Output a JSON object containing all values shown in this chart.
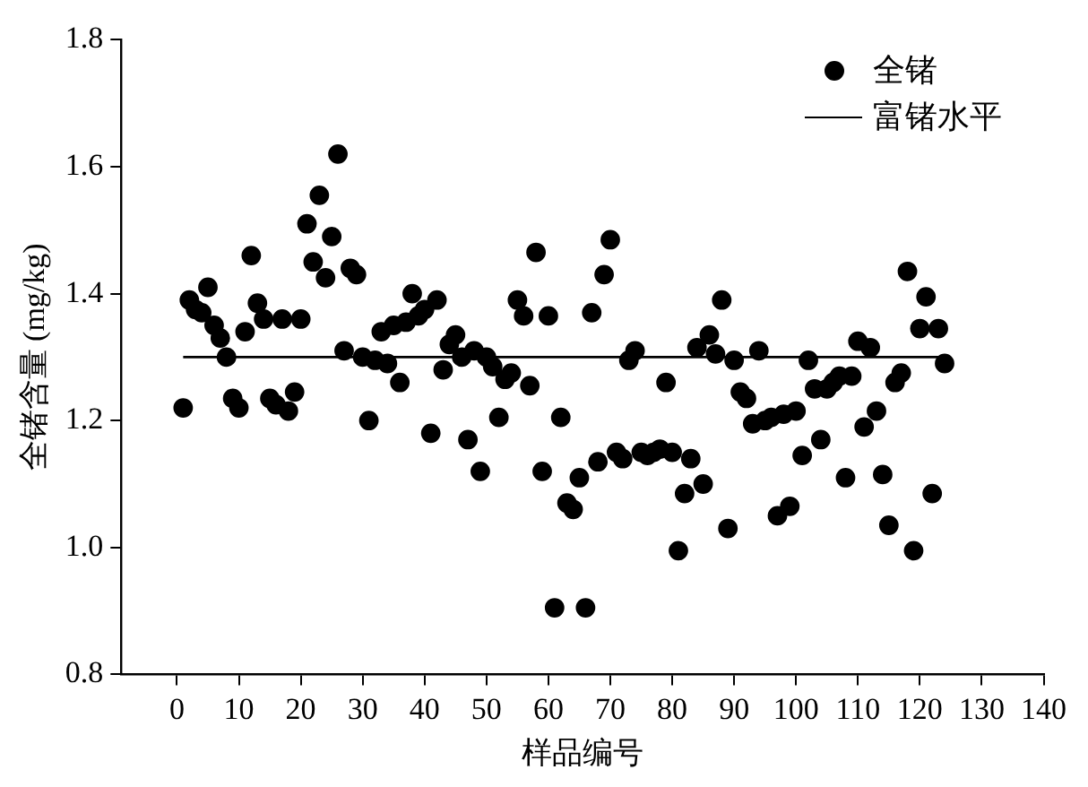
{
  "chart_data": {
    "type": "scatter",
    "xlabel": "样品编号",
    "ylabel": "全锗含量 (mg/kg)",
    "xlim": [
      -9,
      140
    ],
    "xticks": [
      0,
      10,
      20,
      30,
      40,
      50,
      60,
      70,
      80,
      90,
      100,
      110,
      120,
      130,
      140
    ],
    "ylim": [
      0.8,
      1.8
    ],
    "yticks": [
      {
        "value": 0.8,
        "label": "0.8"
      },
      {
        "value": 1.0,
        "label": "1.0"
      },
      {
        "value": 1.2,
        "label": "1.2"
      },
      {
        "value": 1.4,
        "label": "1.4"
      },
      {
        "value": 1.6,
        "label": "1.6"
      },
      {
        "value": 1.8,
        "label": "1.8"
      }
    ],
    "grid": false,
    "legend": "top right",
    "marker": "circle",
    "series": [
      {
        "name": "全锗",
        "type": "scatter",
        "color": "#000000",
        "x": [
          1,
          2,
          3,
          4,
          5,
          6,
          7,
          8,
          9,
          10,
          11,
          12,
          13,
          14,
          15,
          16,
          17,
          18,
          19,
          20,
          21,
          22,
          23,
          24,
          25,
          26,
          27,
          28,
          29,
          30,
          31,
          32,
          33,
          34,
          35,
          36,
          37,
          38,
          39,
          40,
          41,
          42,
          43,
          44,
          45,
          46,
          47,
          48,
          49,
          50,
          51,
          52,
          53,
          54,
          55,
          56,
          57,
          58,
          59,
          60,
          61,
          62,
          63,
          64,
          65,
          66,
          67,
          68,
          69,
          70,
          71,
          72,
          73,
          74,
          75,
          76,
          77,
          78,
          79,
          80,
          81,
          82,
          83,
          84,
          85,
          86,
          87,
          88,
          89,
          90,
          91,
          92,
          93,
          94,
          95,
          96,
          97,
          98,
          99,
          100,
          101,
          102,
          103,
          104,
          105,
          106,
          107,
          108,
          109,
          110,
          111,
          112,
          113,
          114,
          115,
          116,
          117,
          118,
          119,
          120,
          121,
          122,
          123,
          124
        ],
        "values": [
          1.22,
          1.39,
          1.375,
          1.37,
          1.41,
          1.35,
          1.33,
          1.3,
          1.235,
          1.22,
          1.34,
          1.46,
          1.385,
          1.36,
          1.235,
          1.225,
          1.36,
          1.215,
          1.245,
          1.36,
          1.51,
          1.45,
          1.555,
          1.425,
          1.49,
          1.62,
          1.31,
          1.44,
          1.43,
          1.3,
          1.2,
          1.295,
          1.34,
          1.29,
          1.35,
          1.26,
          1.355,
          1.4,
          1.365,
          1.375,
          1.18,
          1.39,
          1.28,
          1.32,
          1.335,
          1.3,
          1.17,
          1.31,
          1.12,
          1.3,
          1.285,
          1.205,
          1.265,
          1.275,
          1.39,
          1.365,
          1.255,
          1.465,
          1.12,
          1.365,
          0.905,
          1.205,
          1.07,
          1.06,
          1.11,
          0.905,
          1.37,
          1.135,
          1.43,
          1.485,
          1.15,
          1.14,
          1.295,
          1.31,
          1.15,
          1.145,
          1.15,
          1.155,
          1.26,
          1.15,
          0.995,
          1.085,
          1.14,
          1.315,
          1.1,
          1.335,
          1.305,
          1.39,
          1.03,
          1.295,
          1.245,
          1.235,
          1.195,
          1.31,
          1.2,
          1.205,
          1.05,
          1.21,
          1.065,
          1.215,
          1.145,
          1.295,
          1.25,
          1.17,
          1.25,
          1.26,
          1.27,
          1.11,
          1.27,
          1.325,
          1.19,
          1.315,
          1.215,
          1.115,
          1.035,
          1.26,
          1.275,
          1.435,
          0.995,
          1.345,
          1.395,
          1.085,
          1.345,
          1.29
        ]
      },
      {
        "name": "富锗水平",
        "type": "line",
        "color": "#000000",
        "marker": "none",
        "line_style": "solid",
        "x": [
          1,
          124
        ],
        "values": [
          1.3,
          1.3
        ]
      }
    ]
  }
}
